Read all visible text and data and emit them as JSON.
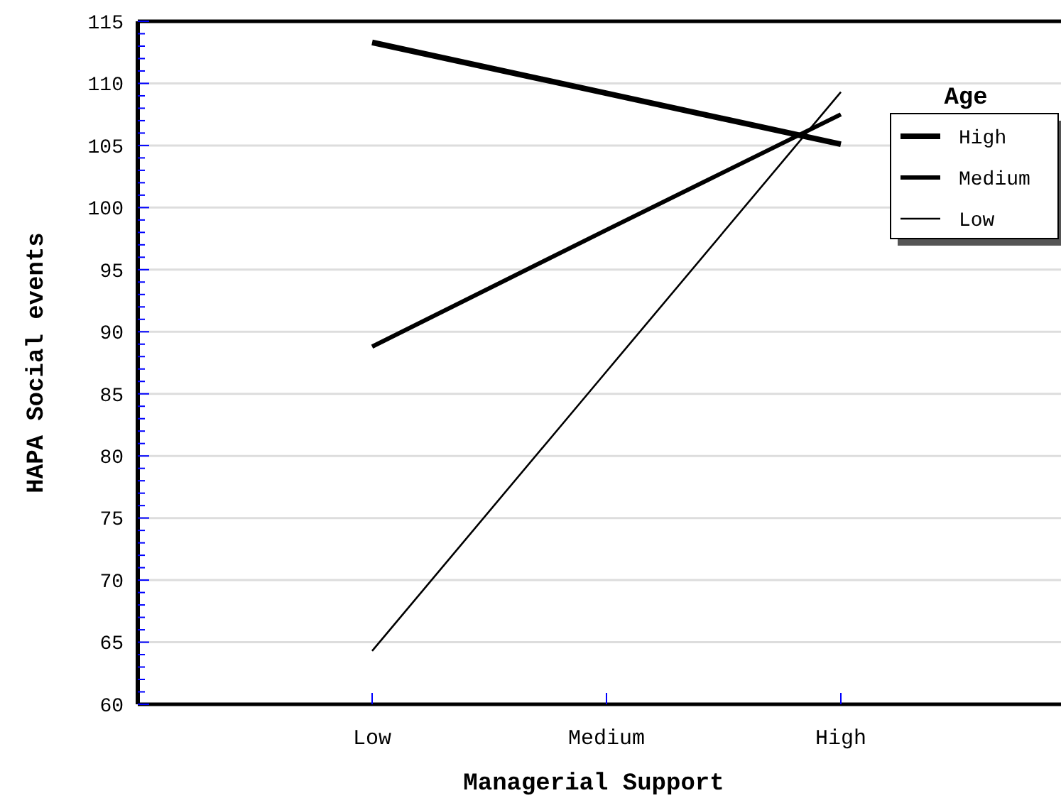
{
  "chart_data": {
    "type": "line",
    "xlabel": "Managerial Support",
    "ylabel": "HAPA Social events",
    "legend_title": "Age",
    "categories": [
      "Low",
      "Medium",
      "High"
    ],
    "series": [
      {
        "name": "High",
        "color": "#000000",
        "values": [
          113.3,
          109.2,
          105.1
        ]
      },
      {
        "name": "Medium",
        "color": "#000000",
        "values": [
          88.8,
          98.2,
          107.5
        ]
      },
      {
        "name": "Low",
        "color": "#000000",
        "values": [
          64.3,
          86.8,
          109.3
        ]
      }
    ],
    "ylim": [
      60,
      115
    ],
    "yticks": [
      60,
      {
        "value": 61,
        "label": null
      },
      {
        "value": 62,
        "label": null
      },
      {
        "value": 63,
        "label": null
      },
      {
        "value": 64,
        "label": null
      },
      65,
      {
        "value": 66,
        "label": null
      },
      {
        "value": 67,
        "label": null
      },
      {
        "value": 68,
        "label": null
      },
      {
        "value": 69,
        "label": null
      },
      70,
      {
        "value": 71,
        "label": null
      },
      {
        "value": 72,
        "label": null
      },
      {
        "value": 73,
        "label": null
      },
      {
        "value": 74,
        "label": null
      },
      75,
      {
        "value": 76,
        "label": null
      },
      {
        "value": 77,
        "label": null
      },
      {
        "value": 78,
        "label": null
      },
      {
        "value": 79,
        "label": null
      },
      80,
      {
        "value": 81,
        "label": null
      },
      {
        "value": 82,
        "label": null
      },
      {
        "value": 83,
        "label": null
      },
      {
        "value": 84,
        "label": null
      },
      85,
      {
        "value": 86,
        "label": null
      },
      {
        "value": 87,
        "label": null
      },
      {
        "value": 88,
        "label": null
      },
      {
        "value": 89,
        "label": null
      },
      90,
      {
        "value": 91,
        "label": null
      },
      {
        "value": 92,
        "label": null
      },
      {
        "value": 93,
        "label": null
      },
      {
        "value": 94,
        "label": null
      },
      95,
      {
        "value": 96,
        "label": null
      },
      {
        "value": 97,
        "label": null
      },
      {
        "value": 98,
        "label": null
      },
      {
        "value": 99,
        "label": null
      },
      100,
      {
        "value": 101,
        "label": null
      },
      {
        "value": 102,
        "label": null
      },
      {
        "value": 103,
        "label": null
      },
      {
        "value": 104,
        "label": null
      },
      105,
      {
        "value": 106,
        "label": null
      },
      {
        "value": 107,
        "label": null
      },
      {
        "value": 108,
        "label": null
      },
      {
        "value": 109,
        "label": null
      },
      110,
      {
        "value": 111,
        "label": null
      },
      {
        "value": 112,
        "label": null
      },
      {
        "value": 113,
        "label": null
      },
      {
        "value": 114,
        "label": null
      },
      115
    ],
    "grid": "y",
    "legend": "top right",
    "marker": "none",
    "line_style": "solid"
  }
}
